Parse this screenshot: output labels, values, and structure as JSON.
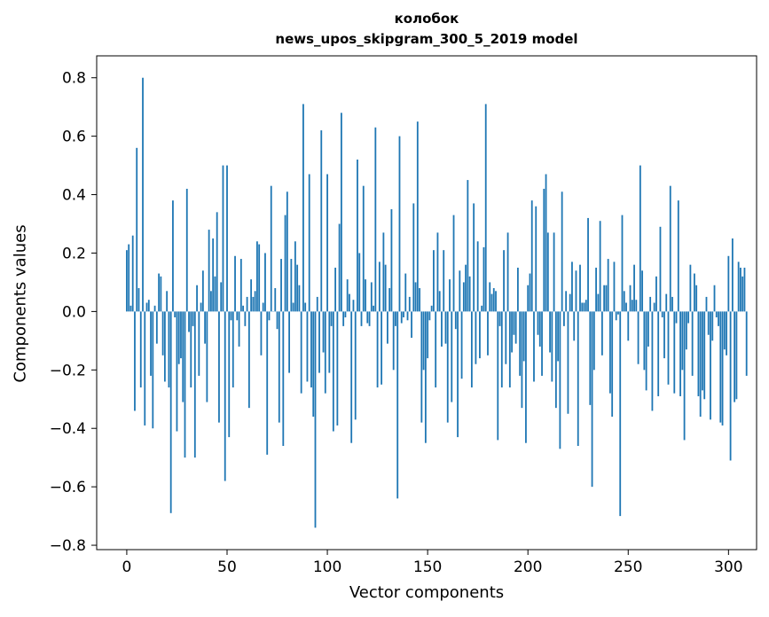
{
  "chart_data": {
    "type": "bar",
    "title": "колобок",
    "subtitle": "news_upos_skipgram_300_5_2019 model",
    "xlabel": "Vector components",
    "ylabel": "Components values",
    "xlim": [
      -15,
      314
    ],
    "ylim": [
      -0.815,
      0.875
    ],
    "xticks": [
      0,
      50,
      100,
      150,
      200,
      250,
      300
    ],
    "yticks": [
      -0.8,
      -0.6,
      -0.4,
      -0.2,
      0.0,
      0.2,
      0.4,
      0.6,
      0.8
    ],
    "ytick_labels": [
      "−0.8",
      "−0.6",
      "−0.4",
      "−0.2",
      "0.0",
      "0.2",
      "0.4",
      "0.6",
      "0.8"
    ],
    "bar_color": "#1f77b4",
    "grid": false,
    "values": [
      0.21,
      0.23,
      0.02,
      0.26,
      -0.34,
      0.56,
      0.08,
      -0.26,
      0.8,
      -0.39,
      0.03,
      0.04,
      -0.22,
      -0.4,
      0.02,
      -0.11,
      0.13,
      0.12,
      -0.15,
      -0.24,
      0.07,
      -0.26,
      -0.69,
      0.38,
      -0.02,
      -0.41,
      -0.18,
      -0.16,
      -0.31,
      -0.5,
      0.42,
      -0.07,
      -0.26,
      -0.05,
      -0.5,
      0.09,
      -0.22,
      0.03,
      0.14,
      -0.11,
      -0.31,
      0.28,
      0.07,
      0.25,
      0.12,
      0.34,
      -0.38,
      0.1,
      0.5,
      -0.58,
      0.5,
      -0.43,
      -0.03,
      -0.26,
      0.19,
      -0.03,
      -0.12,
      0.18,
      0.02,
      -0.05,
      0.05,
      -0.33,
      0.11,
      0.05,
      0.07,
      0.24,
      0.23,
      -0.15,
      0.03,
      0.2,
      -0.49,
      -0.03,
      0.43,
      0.0,
      0.08,
      -0.06,
      -0.38,
      0.18,
      -0.46,
      0.33,
      0.41,
      -0.21,
      0.18,
      0.03,
      0.24,
      0.16,
      0.09,
      -0.28,
      0.71,
      0.03,
      -0.24,
      0.47,
      -0.26,
      -0.36,
      -0.74,
      0.05,
      -0.21,
      0.62,
      -0.14,
      -0.28,
      0.47,
      -0.21,
      -0.05,
      -0.41,
      0.15,
      -0.39,
      0.3,
      0.68,
      -0.05,
      -0.02,
      0.11,
      0.06,
      -0.45,
      0.04,
      -0.37,
      0.52,
      0.2,
      -0.05,
      0.43,
      0.11,
      -0.04,
      -0.05,
      0.1,
      0.02,
      0.63,
      -0.26,
      0.17,
      -0.25,
      0.27,
      0.16,
      -0.11,
      0.08,
      0.35,
      -0.2,
      -0.05,
      -0.64,
      0.6,
      -0.04,
      -0.02,
      0.13,
      -0.03,
      0.05,
      -0.09,
      0.37,
      0.1,
      0.65,
      0.08,
      -0.38,
      -0.2,
      -0.45,
      -0.16,
      -0.03,
      0.02,
      0.21,
      -0.26,
      0.27,
      0.07,
      -0.12,
      0.21,
      -0.11,
      -0.38,
      0.11,
      -0.31,
      0.33,
      -0.06,
      -0.43,
      0.14,
      -0.23,
      0.1,
      0.16,
      0.45,
      0.12,
      -0.26,
      0.37,
      -0.18,
      0.24,
      -0.16,
      0.02,
      0.22,
      0.71,
      -0.15,
      0.1,
      0.06,
      0.08,
      0.07,
      -0.44,
      -0.05,
      -0.26,
      0.21,
      -0.18,
      0.27,
      -0.26,
      -0.14,
      -0.08,
      -0.11,
      0.15,
      -0.22,
      -0.33,
      -0.17,
      -0.45,
      0.09,
      0.13,
      0.38,
      -0.24,
      0.36,
      -0.08,
      -0.12,
      -0.22,
      0.42,
      0.47,
      0.27,
      -0.14,
      -0.24,
      0.27,
      -0.33,
      -0.17,
      -0.47,
      0.41,
      -0.05,
      0.07,
      -0.35,
      0.06,
      0.17,
      -0.1,
      0.14,
      -0.46,
      0.16,
      0.03,
      0.03,
      0.04,
      0.32,
      -0.32,
      -0.6,
      -0.2,
      0.15,
      0.06,
      0.31,
      -0.15,
      0.09,
      0.09,
      0.18,
      -0.28,
      -0.36,
      0.17,
      -0.03,
      -0.01,
      -0.7,
      0.33,
      0.07,
      0.03,
      -0.1,
      0.09,
      0.04,
      0.16,
      0.04,
      -0.18,
      0.5,
      0.14,
      -0.2,
      -0.27,
      -0.12,
      0.05,
      -0.34,
      0.03,
      0.12,
      -0.29,
      0.29,
      -0.02,
      -0.16,
      0.06,
      -0.25,
      0.43,
      0.05,
      -0.28,
      -0.04,
      0.38,
      -0.29,
      -0.2,
      -0.44,
      -0.13,
      -0.04,
      0.16,
      -0.22,
      0.13,
      0.09,
      -0.29,
      -0.36,
      -0.27,
      -0.3,
      0.05,
      -0.08,
      -0.37,
      -0.1,
      0.09,
      -0.02,
      -0.05,
      -0.38,
      -0.39,
      -0.13,
      -0.15,
      0.19,
      -0.51,
      0.25,
      -0.31,
      -0.3,
      0.17,
      0.15,
      0.12,
      0.15,
      -0.22
    ]
  }
}
